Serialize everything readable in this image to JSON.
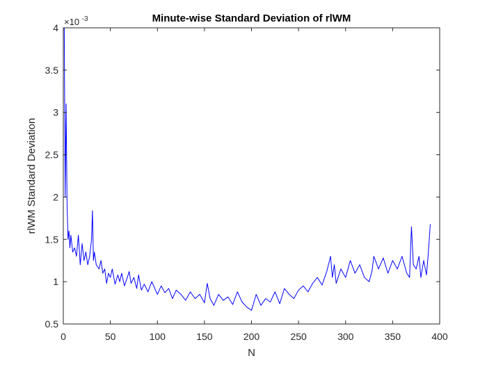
{
  "chart_data": {
    "type": "line",
    "title": "Minute-wise Standard Deviation of rlWM",
    "xlabel": "N",
    "ylabel": "rlWM Standard Deviation",
    "y_multiplier": "×10",
    "y_multiplier_exp": "-3",
    "xlim": [
      0,
      400
    ],
    "ylim": [
      0.5,
      4
    ],
    "x_ticks": [
      0,
      50,
      100,
      150,
      200,
      250,
      300,
      350,
      400
    ],
    "x_tick_labels": [
      "0",
      "50",
      "100",
      "150",
      "200",
      "250",
      "300",
      "350",
      "400"
    ],
    "y_ticks": [
      0.5,
      1,
      1.5,
      2,
      2.5,
      3,
      3.5,
      4
    ],
    "y_tick_labels": [
      "0.5",
      "1",
      "1.5",
      "2",
      "2.5",
      "3",
      "3.5",
      "4"
    ],
    "grid": false,
    "box": true,
    "series": [
      {
        "color": "#0000ff",
        "x": [
          1,
          2,
          3,
          4,
          5,
          6,
          7,
          8,
          10,
          12,
          14,
          16,
          18,
          20,
          22,
          24,
          26,
          28,
          30,
          31,
          32,
          33,
          35,
          38,
          40,
          42,
          44,
          46,
          48,
          50,
          52,
          55,
          58,
          60,
          62,
          65,
          68,
          70,
          72,
          75,
          78,
          80,
          83,
          86,
          90,
          94,
          98,
          100,
          104,
          108,
          112,
          116,
          120,
          125,
          130,
          135,
          140,
          145,
          150,
          153,
          156,
          160,
          165,
          170,
          175,
          180,
          185,
          190,
          195,
          200,
          205,
          210,
          215,
          220,
          225,
          230,
          235,
          240,
          245,
          250,
          255,
          260,
          265,
          270,
          275,
          280,
          284,
          286,
          288,
          290,
          295,
          300,
          305,
          310,
          315,
          320,
          325,
          328,
          330,
          335,
          340,
          345,
          350,
          355,
          360,
          365,
          368,
          370,
          372,
          375,
          378,
          380,
          383,
          386,
          388,
          390
        ],
        "y": [
          4.0,
          2.0,
          3.1,
          1.9,
          1.5,
          1.6,
          1.4,
          1.55,
          1.35,
          1.4,
          1.3,
          1.55,
          1.2,
          1.45,
          1.25,
          1.35,
          1.2,
          1.3,
          1.5,
          1.84,
          1.25,
          1.35,
          1.2,
          1.15,
          1.25,
          1.1,
          1.15,
          0.98,
          1.1,
          1.05,
          1.15,
          0.97,
          1.08,
          1.0,
          1.1,
          0.95,
          1.05,
          1.12,
          0.98,
          1.05,
          0.92,
          1.08,
          0.9,
          0.97,
          0.88,
          1.0,
          0.9,
          0.85,
          0.95,
          0.87,
          0.92,
          0.8,
          0.9,
          0.85,
          0.78,
          0.88,
          0.8,
          0.85,
          0.75,
          0.98,
          0.8,
          0.72,
          0.85,
          0.78,
          0.82,
          0.73,
          0.88,
          0.76,
          0.7,
          0.66,
          0.85,
          0.72,
          0.8,
          0.76,
          0.88,
          0.74,
          0.92,
          0.85,
          0.8,
          0.9,
          0.95,
          0.88,
          0.98,
          1.05,
          0.96,
          1.12,
          1.3,
          1.05,
          1.2,
          0.98,
          1.15,
          1.05,
          1.25,
          1.1,
          1.2,
          1.05,
          1.0,
          1.12,
          1.3,
          1.15,
          1.28,
          1.1,
          1.25,
          1.15,
          1.3,
          1.1,
          1.05,
          1.65,
          1.2,
          1.15,
          1.3,
          1.05,
          1.25,
          1.08,
          1.35,
          1.68
        ]
      }
    ]
  }
}
